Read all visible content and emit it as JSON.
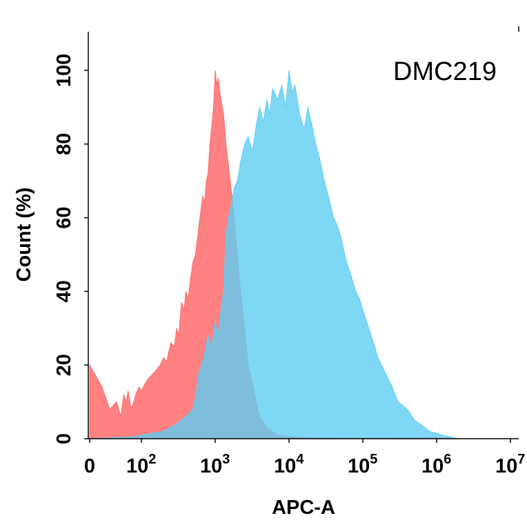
{
  "chart_data": {
    "type": "area",
    "annotation": "DMC219",
    "xlabel": "APC-A",
    "ylabel": "Count  (%)",
    "x_scale": "biexponential",
    "xlim": [
      0,
      10000000
    ],
    "ylim": [
      0,
      100
    ],
    "x_ticks": [
      {
        "value": 0,
        "base": "0",
        "exp": ""
      },
      {
        "value": 100,
        "base": "10",
        "exp": "2"
      },
      {
        "value": 1000,
        "base": "10",
        "exp": "3"
      },
      {
        "value": 10000,
        "base": "10",
        "exp": "4"
      },
      {
        "value": 100000,
        "base": "10",
        "exp": "5"
      },
      {
        "value": 1000000,
        "base": "10",
        "exp": "6"
      },
      {
        "value": 10000000,
        "base": "10",
        "exp": "7"
      }
    ],
    "y_ticks": [
      "0",
      "20",
      "40",
      "60",
      "80",
      "100"
    ],
    "grid": false,
    "legend": "none",
    "series": [
      {
        "color": "#ff6b6b",
        "opacity": 0.85,
        "x": [
          0,
          2,
          5,
          10,
          15,
          20,
          25,
          30,
          40,
          50,
          60,
          80,
          100,
          120,
          150,
          180,
          200,
          220,
          250,
          280,
          300,
          320,
          350,
          380,
          400,
          430,
          460,
          500,
          540,
          580,
          620,
          680,
          720,
          760,
          800,
          850,
          900,
          950,
          1000,
          1050,
          1100,
          1150,
          1200,
          1300,
          1400,
          1500,
          1600,
          1800,
          2000,
          2200,
          2500,
          2800,
          3200,
          3600,
          4000,
          5000,
          7000,
          10000,
          20000,
          50000,
          200000,
          1000000,
          2000000
        ],
        "y": [
          20,
          14,
          8,
          10,
          6,
          12,
          10,
          13,
          8,
          10,
          12,
          14,
          13,
          16,
          18,
          20,
          22,
          21,
          26,
          25,
          30,
          28,
          37,
          35,
          40,
          38,
          43,
          48,
          50,
          55,
          60,
          66,
          64,
          70,
          72,
          80,
          85,
          90,
          100,
          96,
          98,
          94,
          92,
          88,
          80,
          75,
          70,
          60,
          50,
          40,
          30,
          20,
          15,
          10,
          6,
          3,
          1,
          0.5,
          0.3,
          0.2,
          0.2,
          0.3,
          0
        ]
      },
      {
        "color": "#5ecdf2",
        "opacity": 0.8,
        "x": [
          0,
          50,
          100,
          200,
          300,
          400,
          500,
          550,
          600,
          700,
          800,
          900,
          1000,
          1100,
          1200,
          1300,
          1400,
          1500,
          1600,
          1800,
          2000,
          2200,
          2500,
          2800,
          3200,
          3600,
          4000,
          4500,
          5000,
          5500,
          6000,
          7000,
          8000,
          9000,
          10000,
          11000,
          12000,
          14000,
          16000,
          18000,
          20000,
          23000,
          26000,
          30000,
          35000,
          40000,
          45000,
          50000,
          60000,
          70000,
          80000,
          90000,
          100000,
          120000,
          140000,
          160000,
          200000,
          250000,
          300000,
          400000,
          500000,
          600000,
          800000,
          1000000,
          1200000,
          1500000,
          2000000
        ],
        "y": [
          0,
          0.5,
          1,
          2,
          4,
          6,
          8,
          12,
          18,
          22,
          28,
          25,
          32,
          28,
          35,
          40,
          55,
          60,
          62,
          68,
          70,
          75,
          80,
          82,
          78,
          85,
          90,
          86,
          92,
          88,
          95,
          92,
          96,
          90,
          100,
          94,
          96,
          88,
          84,
          90,
          86,
          80,
          76,
          70,
          65,
          60,
          58,
          55,
          48,
          44,
          40,
          38,
          35,
          30,
          26,
          22,
          18,
          14,
          10,
          8,
          5,
          4,
          2,
          1.5,
          1,
          0.5,
          0
        ]
      }
    ]
  }
}
